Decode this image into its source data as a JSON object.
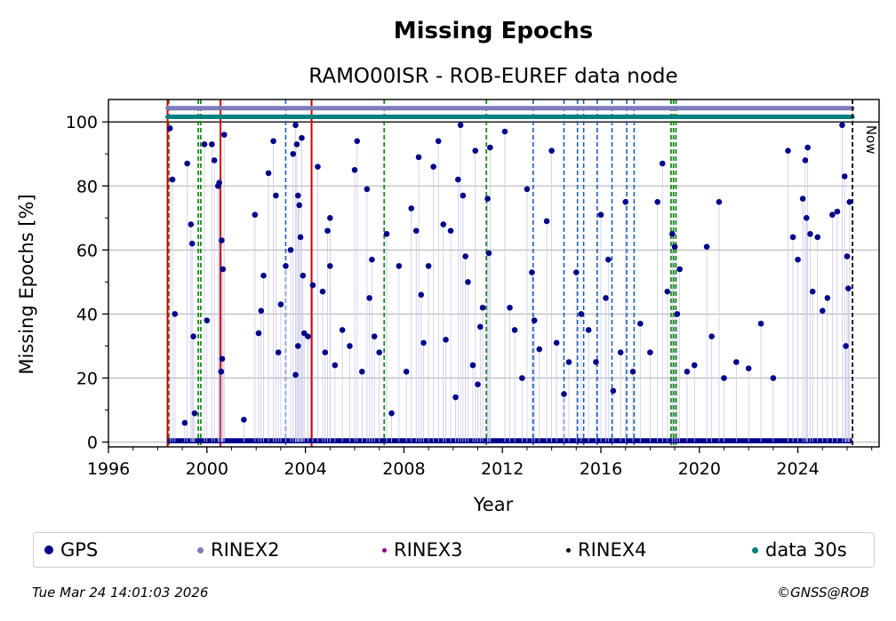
{
  "chart_data": {
    "type": "scatter",
    "title": "Missing Epochs",
    "subtitle": "RAMO00ISR - ROB-EUREF data node",
    "xlabel": "Year",
    "ylabel": "Missing Epochs [%]",
    "xlim": [
      1996,
      2027.3
    ],
    "ylim": [
      -1.5,
      107
    ],
    "x_ticks": [
      "1996",
      "2000",
      "2004",
      "2008",
      "2012",
      "2016",
      "2020",
      "2024"
    ],
    "y_ticks": [
      "0",
      "20",
      "40",
      "60",
      "80",
      "100"
    ],
    "grid": "horizontal",
    "now_label": "Now",
    "now_x": 2026.22,
    "reference_line_y": 100,
    "vertical_lines": {
      "red_solid": [
        1998.4,
        2000.55,
        2004.25
      ],
      "green_dashed": [
        1998.45,
        1999.65,
        1999.75,
        2007.2,
        2011.35,
        2018.85,
        2018.95,
        2019.05
      ],
      "blue_dashed": [
        2003.2,
        2013.25,
        2014.5,
        2015.05,
        2015.3,
        2015.85,
        2016.45,
        2017.05,
        2017.35
      ]
    },
    "series": [
      {
        "name": "GPS",
        "color": "#00008b"
      },
      {
        "name": "RINEX2",
        "color": "#7b7bbd"
      },
      {
        "name": "RINEX3",
        "color": "#8b008b"
      },
      {
        "name": "RINEX4",
        "color": "#1a0010"
      },
      {
        "name": "data 30s",
        "color": "#008080"
      }
    ],
    "availability_bands": [
      {
        "series": "RINEX2",
        "y": 104.3,
        "start": 1998.4,
        "end": 2026.22
      },
      {
        "series": "data 30s",
        "y": 101.6,
        "start": 1998.4,
        "end": 2026.22
      }
    ],
    "gps_points": [
      [
        1998.5,
        98
      ],
      [
        1998.6,
        82
      ],
      [
        1998.7,
        40
      ],
      [
        1999.1,
        6
      ],
      [
        1999.2,
        87
      ],
      [
        1999.35,
        68
      ],
      [
        1999.4,
        62
      ],
      [
        1999.45,
        33
      ],
      [
        1999.5,
        9
      ],
      [
        1999.9,
        93
      ],
      [
        2000.0,
        38
      ],
      [
        2000.2,
        93
      ],
      [
        2000.3,
        88
      ],
      [
        2000.45,
        80
      ],
      [
        2000.5,
        81
      ],
      [
        2000.6,
        63
      ],
      [
        2000.7,
        96
      ],
      [
        2000.62,
        26
      ],
      [
        2000.58,
        22
      ],
      [
        2000.65,
        54
      ],
      [
        2001.5,
        7
      ],
      [
        2001.95,
        71
      ],
      [
        2002.1,
        34
      ],
      [
        2002.2,
        41
      ],
      [
        2002.3,
        52
      ],
      [
        2002.5,
        84
      ],
      [
        2002.7,
        94
      ],
      [
        2002.8,
        77
      ],
      [
        2002.9,
        28
      ],
      [
        2003.0,
        43
      ],
      [
        2003.2,
        55
      ],
      [
        2003.4,
        60
      ],
      [
        2003.5,
        90
      ],
      [
        2003.6,
        99
      ],
      [
        2003.65,
        93
      ],
      [
        2003.7,
        77
      ],
      [
        2003.75,
        74
      ],
      [
        2003.8,
        64
      ],
      [
        2003.85,
        95
      ],
      [
        2003.9,
        52
      ],
      [
        2003.95,
        34
      ],
      [
        2003.7,
        30
      ],
      [
        2003.6,
        21
      ],
      [
        2004.1,
        33
      ],
      [
        2004.3,
        49
      ],
      [
        2004.5,
        86
      ],
      [
        2004.7,
        47
      ],
      [
        2004.8,
        28
      ],
      [
        2004.9,
        66
      ],
      [
        2005.0,
        55
      ],
      [
        2005.0,
        70
      ],
      [
        2005.2,
        24
      ],
      [
        2005.5,
        35
      ],
      [
        2005.8,
        30
      ],
      [
        2006.0,
        85
      ],
      [
        2006.1,
        94
      ],
      [
        2006.3,
        22
      ],
      [
        2006.5,
        79
      ],
      [
        2006.6,
        45
      ],
      [
        2006.7,
        57
      ],
      [
        2006.8,
        33
      ],
      [
        2007.0,
        28
      ],
      [
        2007.3,
        65
      ],
      [
        2007.5,
        9
      ],
      [
        2007.8,
        55
      ],
      [
        2008.1,
        22
      ],
      [
        2008.3,
        73
      ],
      [
        2008.5,
        66
      ],
      [
        2008.6,
        89
      ],
      [
        2008.7,
        46
      ],
      [
        2008.8,
        31
      ],
      [
        2009.0,
        55
      ],
      [
        2009.2,
        86
      ],
      [
        2009.4,
        94
      ],
      [
        2009.6,
        68
      ],
      [
        2009.7,
        32
      ],
      [
        2009.9,
        66
      ],
      [
        2010.1,
        14
      ],
      [
        2010.2,
        82
      ],
      [
        2010.3,
        99
      ],
      [
        2010.4,
        77
      ],
      [
        2010.5,
        58
      ],
      [
        2010.6,
        50
      ],
      [
        2010.8,
        24
      ],
      [
        2010.9,
        91
      ],
      [
        2011.0,
        18
      ],
      [
        2011.1,
        36
      ],
      [
        2011.2,
        42
      ],
      [
        2011.4,
        76
      ],
      [
        2011.5,
        92
      ],
      [
        2011.45,
        59
      ],
      [
        2012.1,
        97
      ],
      [
        2012.3,
        42
      ],
      [
        2012.5,
        35
      ],
      [
        2012.8,
        20
      ],
      [
        2013.0,
        79
      ],
      [
        2013.2,
        53
      ],
      [
        2013.3,
        38
      ],
      [
        2013.5,
        29
      ],
      [
        2013.8,
        69
      ],
      [
        2014.0,
        91
      ],
      [
        2014.2,
        31
      ],
      [
        2014.5,
        15
      ],
      [
        2014.7,
        25
      ],
      [
        2015.0,
        53
      ],
      [
        2015.2,
        40
      ],
      [
        2015.5,
        35
      ],
      [
        2015.8,
        25
      ],
      [
        2016.0,
        71
      ],
      [
        2016.2,
        45
      ],
      [
        2016.3,
        57
      ],
      [
        2016.5,
        16
      ],
      [
        2016.8,
        28
      ],
      [
        2017.0,
        75
      ],
      [
        2017.3,
        22
      ],
      [
        2017.6,
        37
      ],
      [
        2018.0,
        28
      ],
      [
        2018.3,
        75
      ],
      [
        2018.5,
        87
      ],
      [
        2018.7,
        47
      ],
      [
        2018.9,
        65
      ],
      [
        2019.0,
        61
      ],
      [
        2019.1,
        40
      ],
      [
        2019.2,
        54
      ],
      [
        2019.5,
        22
      ],
      [
        2019.8,
        24
      ],
      [
        2020.3,
        61
      ],
      [
        2020.5,
        33
      ],
      [
        2020.8,
        75
      ],
      [
        2021.0,
        20
      ],
      [
        2021.5,
        25
      ],
      [
        2022.0,
        23
      ],
      [
        2022.5,
        37
      ],
      [
        2023.0,
        20
      ],
      [
        2023.6,
        91
      ],
      [
        2023.8,
        64
      ],
      [
        2024.0,
        57
      ],
      [
        2024.2,
        76
      ],
      [
        2024.3,
        88
      ],
      [
        2024.4,
        92
      ],
      [
        2024.35,
        70
      ],
      [
        2024.5,
        65
      ],
      [
        2024.6,
        47
      ],
      [
        2024.8,
        64
      ],
      [
        2025.0,
        41
      ],
      [
        2025.2,
        45
      ],
      [
        2025.4,
        71
      ],
      [
        2025.6,
        72
      ],
      [
        2025.8,
        99
      ],
      [
        2025.9,
        83
      ],
      [
        2026.0,
        58
      ],
      [
        2026.1,
        75
      ],
      [
        2026.05,
        48
      ],
      [
        2025.95,
        30
      ]
    ]
  },
  "legend": [
    {
      "label": "GPS",
      "color": "#00008b",
      "size": 10
    },
    {
      "label": "RINEX2",
      "color": "#7b7bbd",
      "size": 7
    },
    {
      "label": "RINEX3",
      "color": "#8b008b",
      "size": 5
    },
    {
      "label": "RINEX4",
      "color": "#1a0010",
      "size": 5
    },
    {
      "label": "data 30s",
      "color": "#008080",
      "size": 7
    }
  ],
  "footer": {
    "timestamp": "Tue Mar 24 14:01:03 2026",
    "credit": "©GNSS@ROB"
  }
}
